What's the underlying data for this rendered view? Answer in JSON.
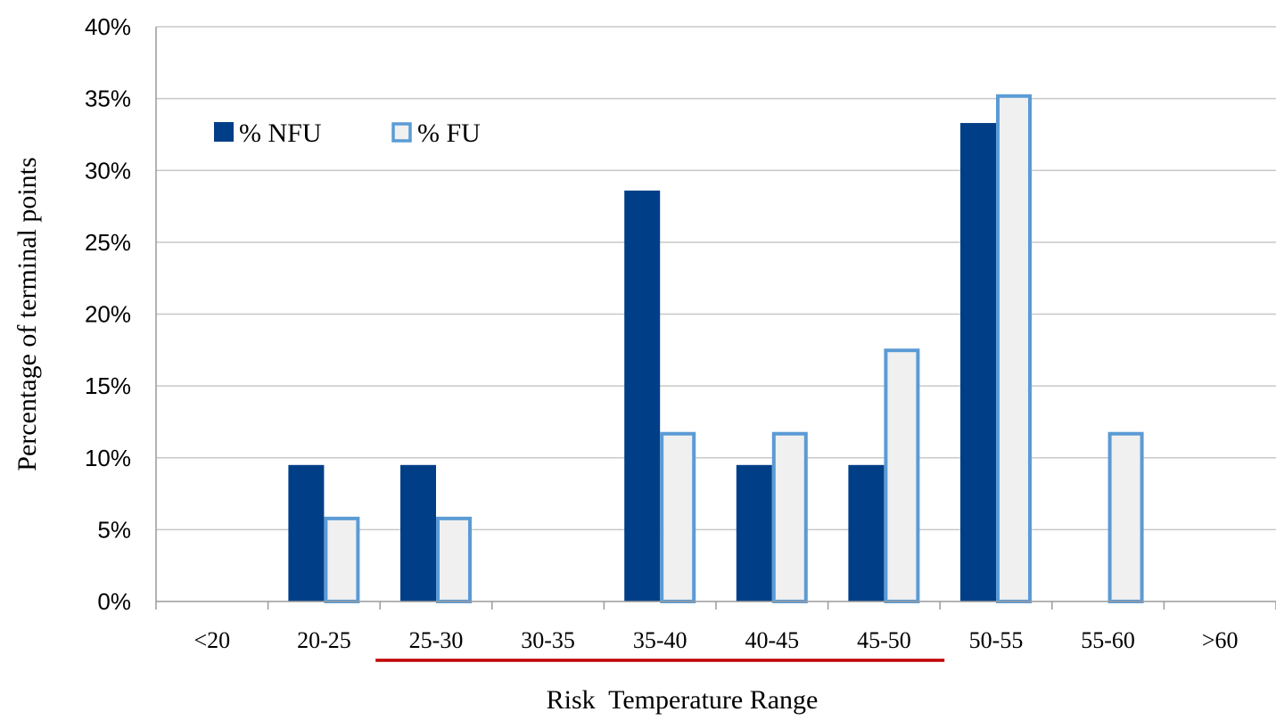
{
  "chart_data": {
    "type": "bar",
    "xlabel": "Risk  Temperature Range",
    "ylabel": "Percentage of terminal points",
    "categories": [
      "<20",
      "20-25",
      "25-30",
      "30-35",
      "35-40",
      "40-45",
      "45-50",
      "50-55",
      "55-60",
      ">60"
    ],
    "series": [
      {
        "name": "% NFU",
        "values": [
          0,
          9.5,
          9.5,
          0,
          28.6,
          9.5,
          9.5,
          33.3,
          0,
          0
        ],
        "color": "#003f87"
      },
      {
        "name": "% FU",
        "values": [
          0,
          5.9,
          5.9,
          0,
          11.8,
          11.8,
          17.6,
          35.3,
          11.8,
          0
        ],
        "color": "#f0f0f0",
        "stroke": "#5b9bd5"
      }
    ],
    "ylim": [
      0,
      40
    ],
    "yticks": [
      "0%",
      "5%",
      "10%",
      "15%",
      "20%",
      "25%",
      "30%",
      "35%",
      "40%"
    ],
    "grid": true,
    "legend": "top-left",
    "highlight_range": {
      "from": "25-30",
      "to": "45-50",
      "color": "#c00000"
    }
  }
}
